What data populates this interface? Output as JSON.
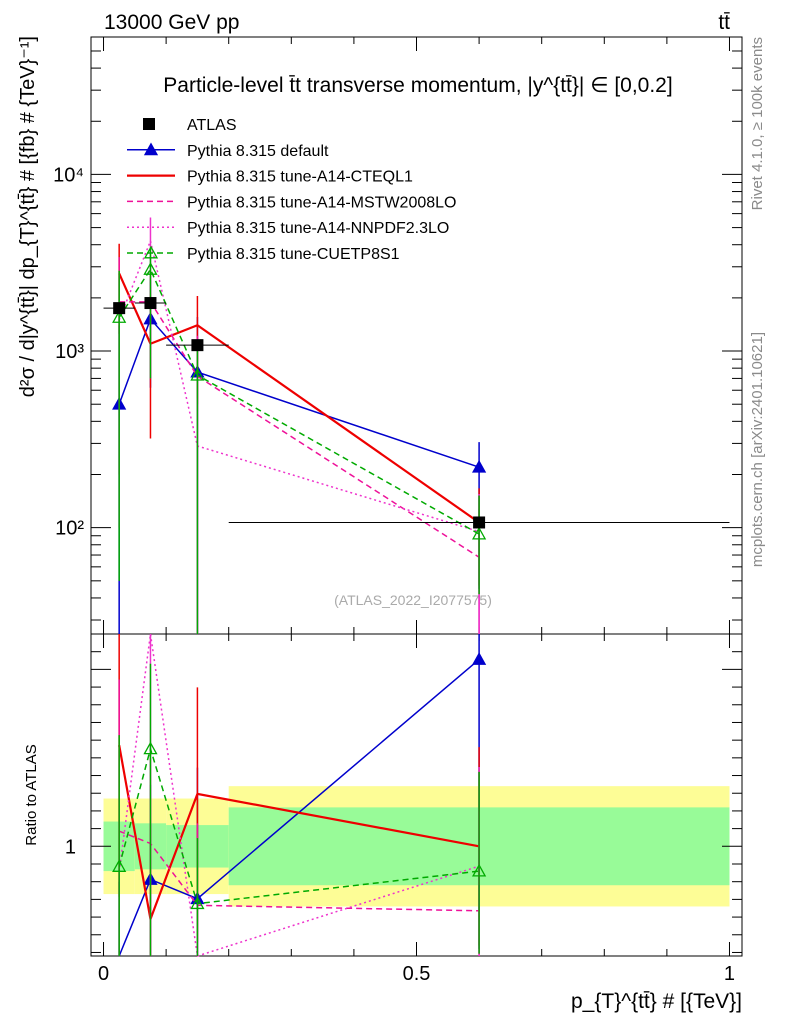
{
  "header": {
    "energy_label": "13000 GeV pp",
    "process_label": "tt̄"
  },
  "side_labels": {
    "rivet": "Rivet 4.1.0, ≥ 100k events",
    "mcplots": "mcplots.cern.ch [arXiv:2401.10621]"
  },
  "chart_data": {
    "type": "line",
    "title": "Particle-level t̄t transverse momentum, |y^{tt̄}| ∈ [0,0.2]",
    "analysis_id": "(ATLAS_2022_I2077575)",
    "xlabel": "p_{T}^{tt̄} # [{TeV}]",
    "ylabel": "d²σ / d|y^{tt̄}| dp_{T}^{tt̄} # [{fb} # {TeV}⁻¹]",
    "ratio_ylabel": "Ratio to ATLAS",
    "xlim": [
      -0.02,
      1.02
    ],
    "ylim": [
      25,
      60000
    ],
    "yscale": "log",
    "ratio_ylim": [
      0.38,
      2.2
    ],
    "x_ticks": [
      0,
      0.5,
      1
    ],
    "x_tick_labels": [
      "0",
      "0.5",
      "1"
    ],
    "y_ticks": [
      100,
      1000,
      10000
    ],
    "y_tick_labels": [
      "10²",
      "10³",
      "10⁴"
    ],
    "ratio_y_ticks": [
      1
    ],
    "ratio_y_tick_labels": [
      "1"
    ],
    "legend_position": "top-left",
    "data": {
      "name": "ATLAS",
      "x": [
        0.025,
        0.075,
        0.15,
        0.6
      ],
      "y": [
        1750,
        1870,
        1080,
        107
      ],
      "xerr_lo": [
        0.025,
        0.025,
        0.05,
        0.4
      ],
      "xerr_hi": [
        0.025,
        0.025,
        0.05,
        0.4
      ],
      "band_stat": [
        0.14,
        0.13,
        0.12,
        0.22
      ],
      "band_total": [
        0.27,
        0.27,
        0.27,
        0.34
      ]
    },
    "series": [
      {
        "name": "Pythia 8.315 default",
        "color": "#0000cc",
        "style": "solid",
        "marker": "triangle-filled",
        "x": [
          0.025,
          0.075,
          0.15,
          0.6
        ],
        "y": [
          500,
          1520,
          760,
          220
        ],
        "err_lo": [
          480,
          900,
          740,
          175
        ],
        "err_hi": [
          900,
          1000,
          800,
          85
        ]
      },
      {
        "name": "Pythia 8.315 tune-A14-CTEQL1",
        "color": "#ee0000",
        "style": "solid",
        "marker": "none",
        "x": [
          0.025,
          0.075,
          0.15,
          0.6
        ],
        "y": [
          2750,
          1100,
          1400,
          107
        ],
        "err_lo": [
          1500,
          780,
          900,
          60
        ],
        "err_hi": [
          1300,
          1000,
          650,
          60
        ]
      },
      {
        "name": "Pythia 8.315 tune-A14-MSTW2008LO",
        "color": "#ee1199",
        "style": "dashed",
        "marker": "none",
        "x": [
          0.025,
          0.075,
          0.15,
          0.6
        ],
        "y": [
          1900,
          1900,
          720,
          68
        ],
        "err_lo": [
          1700,
          1200,
          700,
          60
        ],
        "err_hi": [
          1500,
          900,
          500,
          60
        ]
      },
      {
        "name": "Pythia 8.315 tune-A14-NNPDF2.3LO",
        "color": "#ee33cc",
        "style": "dotted",
        "marker": "none",
        "x": [
          0.025,
          0.075,
          0.15,
          0.6
        ],
        "y": [
          1500,
          4200,
          290,
          95
        ],
        "err_lo": [
          1400,
          3500,
          280,
          80
        ],
        "err_hi": [
          1200,
          1500,
          250,
          60
        ]
      },
      {
        "name": "Pythia 8.315 tune-CUETP8S1",
        "color": "#00aa00",
        "style": "dashed",
        "marker": "triangle-open",
        "x": [
          0.025,
          0.075,
          0.15,
          0.6
        ],
        "y": [
          1550,
          2900,
          730,
          92
        ],
        "err_lo": [
          1500,
          2200,
          710,
          50
        ],
        "err_hi": [
          1300,
          900,
          400,
          60
        ]
      }
    ]
  }
}
